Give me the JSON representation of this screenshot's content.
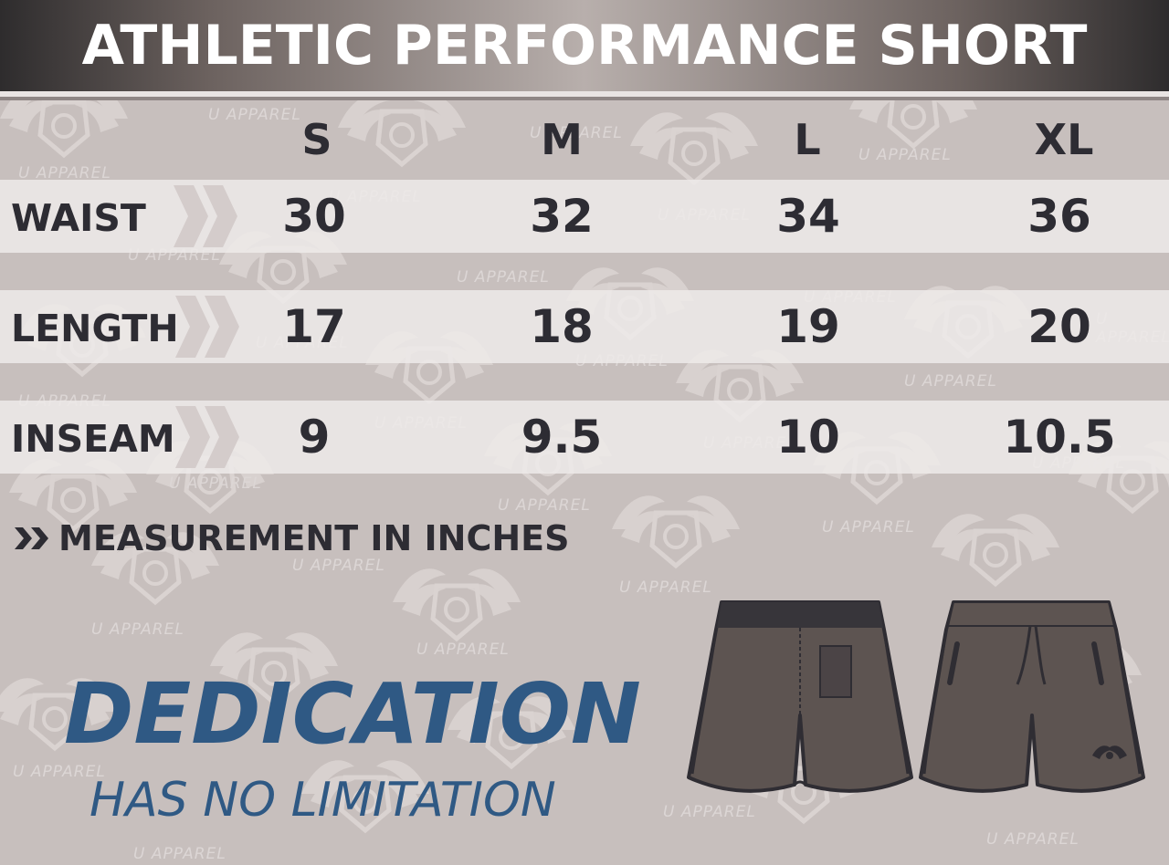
{
  "header": {
    "title": "ATHLETIC PERFORMANCE SHORT"
  },
  "watermark": {
    "text": "U APPAREL"
  },
  "sizes": [
    "S",
    "M",
    "L",
    "XL"
  ],
  "rows": [
    {
      "label": "WAIST",
      "values": [
        "30",
        "32",
        "34",
        "36"
      ]
    },
    {
      "label": "LENGTH",
      "values": [
        "17",
        "18",
        "19",
        "20"
      ]
    },
    {
      "label": "INSEAM",
      "values": [
        "9",
        "9.5",
        "10",
        "10.5"
      ]
    }
  ],
  "note": {
    "text": "MEASUREMENT IN INCHES",
    "icon": "double-chevron-icon"
  },
  "slogan": {
    "line1": "DEDICATION",
    "line2": "HAS NO LIMITATION"
  },
  "colors": {
    "background": "#c7bfbd",
    "text_dark": "#2d2c33",
    "slogan_blue": "#2f5984",
    "shorts_fill": "#5d5451",
    "shorts_band": "#37353a"
  }
}
